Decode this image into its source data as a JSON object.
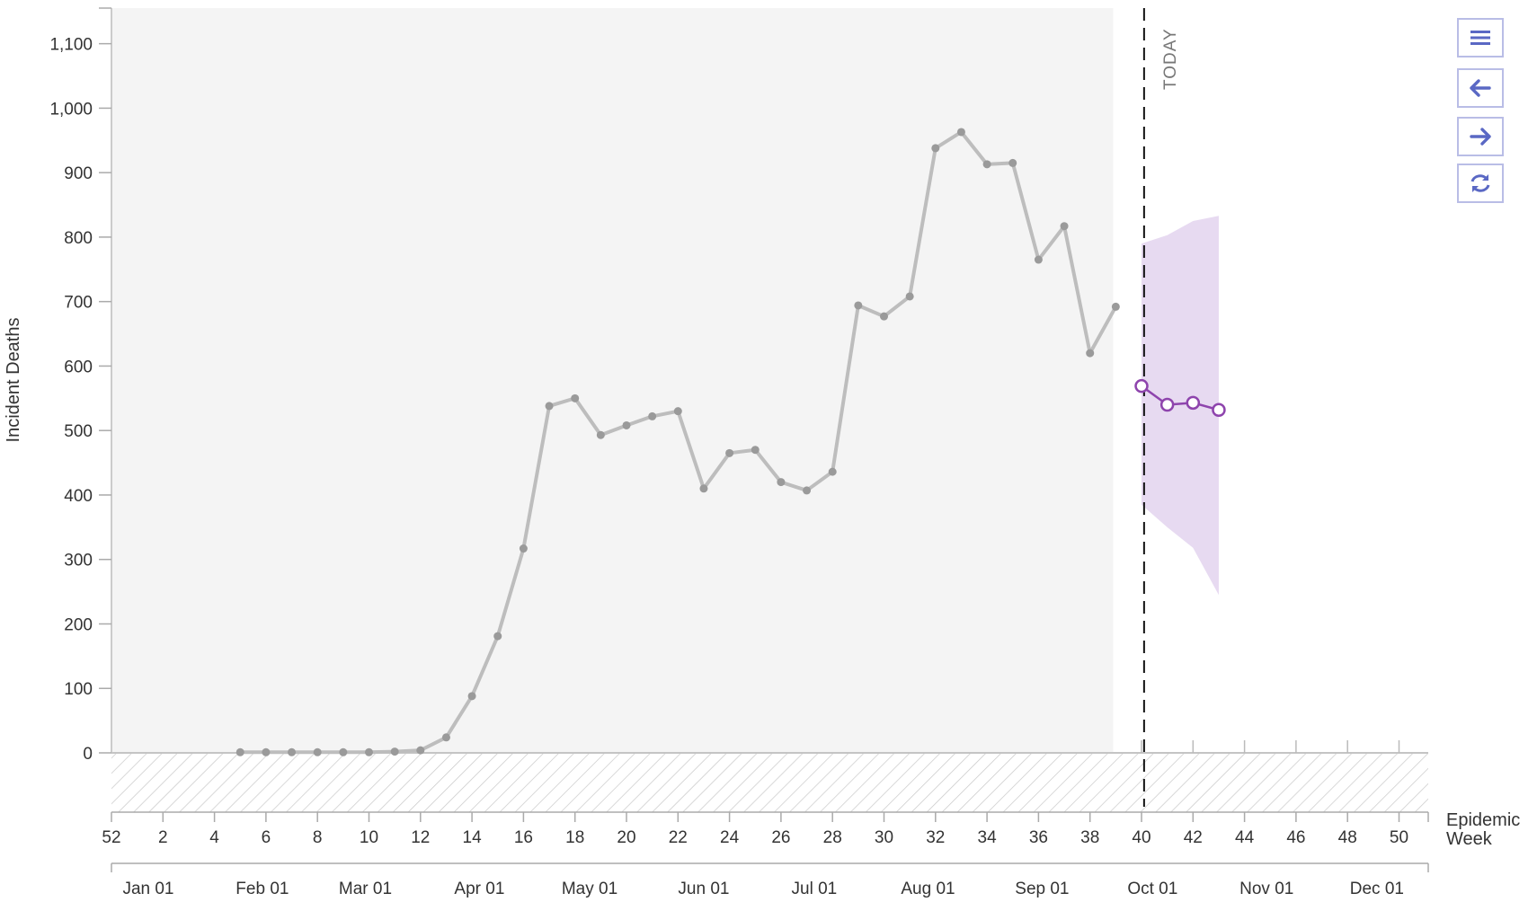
{
  "chart_data": {
    "type": "line",
    "ylabel": "Incident Deaths",
    "xlabel": "Epidemic Week",
    "ylim": [
      -90,
      1150
    ],
    "y_ticks": [
      0,
      100,
      200,
      300,
      400,
      500,
      600,
      700,
      800,
      900,
      1000,
      1100
    ],
    "y_tick_labels": [
      "0",
      "100",
      "200",
      "300",
      "400",
      "500",
      "600",
      "700",
      "800",
      "900",
      "1,000",
      "1,100"
    ],
    "week_ticks": [
      0,
      2,
      4,
      6,
      8,
      10,
      12,
      14,
      16,
      18,
      20,
      22,
      24,
      26,
      28,
      30,
      32,
      34,
      36,
      38,
      40,
      42,
      44,
      46,
      48,
      50
    ],
    "week_tick_labels": [
      "52",
      "2",
      "4",
      "6",
      "8",
      "10",
      "12",
      "14",
      "16",
      "18",
      "20",
      "22",
      "24",
      "26",
      "28",
      "30",
      "32",
      "34",
      "36",
      "38",
      "40",
      "42",
      "44",
      "46",
      "48",
      "50"
    ],
    "month_ticks": [
      1.43,
      5.86,
      9.86,
      14.29,
      18.57,
      23.0,
      27.29,
      31.71,
      36.14,
      40.43,
      44.86,
      49.14
    ],
    "month_labels": [
      "Jan 01",
      "Feb 01",
      "Mar 01",
      "Apr 01",
      "May 01",
      "Jun 01",
      "Jul 01",
      "Aug 01",
      "Sep 01",
      "Oct 01",
      "Nov 01",
      "Dec 01"
    ],
    "today_week": 40.1,
    "today_label": "TODAY",
    "observed_end_week": 38.9,
    "series": [
      {
        "role": "observed",
        "color": "#bdbdbd",
        "x": [
          5,
          6,
          7,
          8,
          9,
          10,
          11,
          12,
          13,
          14,
          15,
          16,
          17,
          18,
          19,
          20,
          21,
          22,
          23,
          24,
          25,
          26,
          27,
          28,
          29,
          30,
          31,
          32,
          33,
          34,
          35,
          36,
          37,
          38,
          39
        ],
        "y": [
          1,
          1,
          1,
          1,
          1,
          1,
          2,
          4,
          24,
          88,
          181,
          317,
          538,
          550,
          493,
          508,
          522,
          530,
          410,
          465,
          470,
          420,
          407,
          436,
          694,
          677,
          708,
          938,
          963,
          913,
          915,
          765,
          817,
          620,
          692
        ]
      },
      {
        "role": "forecast",
        "color": "#8e44ad",
        "x": [
          40,
          41,
          42,
          43
        ],
        "y": [
          569,
          540,
          543,
          532
        ],
        "band_x": [
          40,
          41,
          42,
          43
        ],
        "band_lower": [
          385,
          350,
          318,
          245
        ],
        "band_upper": [
          790,
          803,
          825,
          833
        ],
        "band_color": "#e6d8f0"
      }
    ]
  },
  "controls": [
    {
      "name": "menu-icon"
    },
    {
      "name": "arrow-left-icon"
    },
    {
      "name": "arrow-right-icon"
    },
    {
      "name": "refresh-icon"
    }
  ]
}
